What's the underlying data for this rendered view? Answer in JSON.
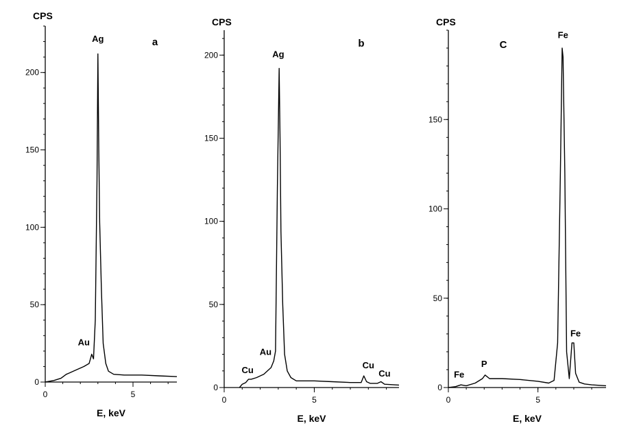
{
  "chart_data": [
    {
      "type": "line",
      "panel_label": "a",
      "ylabel": "CPS",
      "xlabel": "E, keV",
      "xlim": [
        0,
        7.5
      ],
      "ylim": [
        0,
        230
      ],
      "xticks": [
        0,
        5
      ],
      "yticks": [
        0,
        50,
        100,
        150,
        200
      ],
      "minor_yticks": 10,
      "annotations": [
        {
          "text": "Ag",
          "x": 3.0,
          "y": 218
        },
        {
          "text": "Au",
          "x": 2.2,
          "y": 22
        }
      ],
      "series": [
        {
          "x": [
            0,
            0.5,
            0.9,
            1.2,
            1.3,
            1.8,
            2.2,
            2.5,
            2.65,
            2.75,
            2.85,
            2.95,
            3.0,
            3.05,
            3.1,
            3.2,
            3.3,
            3.45,
            3.6,
            3.9,
            4.5,
            5.5,
            6.5,
            7.5
          ],
          "y": [
            0,
            1,
            2.5,
            5,
            5.5,
            8,
            10,
            12,
            18,
            15,
            40,
            130,
            212,
            150,
            103,
            60,
            25,
            12,
            7,
            5,
            4.5,
            4.5,
            4,
            3.5
          ]
        }
      ]
    },
    {
      "type": "line",
      "panel_label": "b",
      "ylabel": "CPS",
      "xlabel": "E, keV",
      "xlim": [
        0,
        9.7
      ],
      "ylim": [
        0,
        215
      ],
      "xticks": [
        0,
        5
      ],
      "yticks": [
        0,
        50,
        100,
        150,
        200
      ],
      "minor_yticks": 10,
      "annotations": [
        {
          "text": "Ag",
          "x": 3.0,
          "y": 197
        },
        {
          "text": "Au",
          "x": 2.3,
          "y": 18
        },
        {
          "text": "Cu",
          "x": 1.3,
          "y": 7
        },
        {
          "text": "Cu",
          "x": 8.0,
          "y": 10
        },
        {
          "text": "Cu",
          "x": 8.9,
          "y": 5
        }
      ],
      "series": [
        {
          "x": [
            0.85,
            1.0,
            1.2,
            1.35,
            1.5,
            1.8,
            2.2,
            2.6,
            2.75,
            2.85,
            2.95,
            3.05,
            3.1,
            3.15,
            3.25,
            3.35,
            3.5,
            3.7,
            4.0,
            5.0,
            6.0,
            7.0,
            7.6,
            7.75,
            7.9,
            8.1,
            8.5,
            8.7,
            8.9,
            9.7
          ],
          "y": [
            0,
            2,
            3,
            5,
            5,
            6,
            8,
            12,
            16,
            22,
            120,
            192,
            150,
            94,
            50,
            20,
            10,
            6,
            4,
            4,
            3.5,
            3,
            3,
            7,
            3.5,
            2.5,
            2.5,
            3.5,
            2,
            1.5
          ]
        }
      ]
    },
    {
      "type": "line",
      "panel_label": "C",
      "ylabel": "CPS",
      "xlabel": "E, keV",
      "xlim": [
        0,
        8.8
      ],
      "ylim": [
        0,
        200
      ],
      "xticks": [
        0,
        5
      ],
      "yticks": [
        0,
        50,
        100,
        150
      ],
      "minor_yticks": 10,
      "annotations": [
        {
          "text": "Fe",
          "x": 6.4,
          "y": 194
        },
        {
          "text": "Fe",
          "x": 7.1,
          "y": 27
        },
        {
          "text": "P",
          "x": 2.0,
          "y": 10
        },
        {
          "text": "Fe",
          "x": 0.6,
          "y": 4
        }
      ],
      "series": [
        {
          "x": [
            0,
            0.4,
            0.7,
            1.0,
            1.5,
            1.9,
            2.05,
            2.3,
            3.0,
            4.0,
            5.0,
            5.6,
            5.9,
            6.1,
            6.25,
            6.35,
            6.4,
            6.5,
            6.6,
            6.75,
            6.9,
            7.0,
            7.1,
            7.3,
            7.6,
            8.0,
            8.8
          ],
          "y": [
            0,
            0.5,
            1.5,
            1,
            2.5,
            5,
            7,
            5,
            5,
            4.5,
            3.5,
            2.5,
            4,
            25,
            120,
            190,
            185,
            120,
            20,
            5,
            25,
            25,
            8,
            3,
            2,
            1.5,
            1
          ]
        }
      ]
    }
  ]
}
